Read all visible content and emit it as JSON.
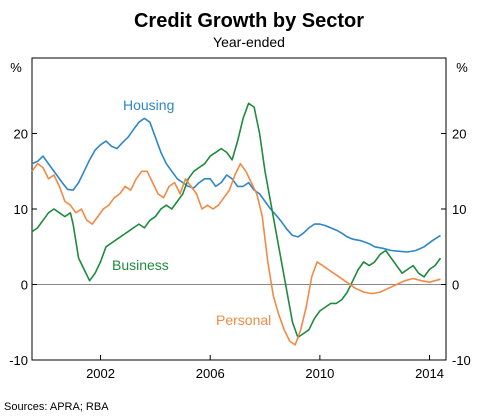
{
  "chart_data": {
    "type": "line",
    "title": "Credit Growth by Sector",
    "subtitle": "Year-ended",
    "y_unit_left": "%",
    "y_unit_right": "%",
    "ylim": [
      -10,
      30
    ],
    "yticks": [
      -10,
      0,
      10,
      20
    ],
    "ytick_labels": [
      "-10",
      "0",
      "10",
      "20"
    ],
    "xlim": [
      1999.5,
      2014.6
    ],
    "xticks": [
      2002,
      2006,
      2010,
      2014
    ],
    "xtick_labels": [
      "2002",
      "2006",
      "2010",
      "2014"
    ],
    "grid": false,
    "zero_line": true,
    "source": "Sources:   APRA; RBA",
    "colors": {
      "Housing": "#2e86c8",
      "Business": "#1e8b3e",
      "Personal": "#f08a45"
    },
    "series": [
      {
        "name": "Housing",
        "x": [
          1999.5,
          1999.7,
          1999.9,
          2000.0,
          2000.2,
          2000.4,
          2000.6,
          2000.8,
          2001.0,
          2001.2,
          2001.4,
          2001.6,
          2001.8,
          2002.0,
          2002.2,
          2002.4,
          2002.6,
          2002.8,
          2003.0,
          2003.2,
          2003.4,
          2003.6,
          2003.8,
          2004.0,
          2004.2,
          2004.4,
          2004.6,
          2004.8,
          2005.0,
          2005.2,
          2005.4,
          2005.6,
          2005.8,
          2006.0,
          2006.2,
          2006.4,
          2006.6,
          2006.8,
          2007.0,
          2007.2,
          2007.4,
          2007.6,
          2007.8,
          2008.0,
          2008.2,
          2008.4,
          2008.6,
          2008.8,
          2009.0,
          2009.2,
          2009.4,
          2009.6,
          2009.8,
          2010.0,
          2010.2,
          2010.4,
          2010.6,
          2010.8,
          2011.0,
          2011.2,
          2011.5,
          2011.8,
          2012.0,
          2012.3,
          2012.6,
          2012.9,
          2013.2,
          2013.5,
          2013.8,
          2014.1,
          2014.4
        ],
        "values": [
          16.0,
          16.3,
          17.0,
          16.5,
          15.5,
          14.5,
          13.5,
          12.6,
          12.5,
          13.5,
          15.0,
          16.5,
          17.8,
          18.5,
          19.0,
          18.3,
          18.0,
          18.8,
          19.5,
          20.5,
          21.5,
          22.0,
          21.5,
          19.5,
          17.5,
          16.0,
          15.0,
          14.0,
          13.5,
          13.0,
          12.8,
          13.5,
          14.0,
          14.0,
          13.0,
          13.5,
          14.5,
          14.0,
          13.0,
          13.0,
          13.5,
          12.5,
          12.0,
          11.0,
          10.0,
          9.2,
          8.3,
          7.3,
          6.5,
          6.3,
          6.8,
          7.5,
          8.0,
          8.0,
          7.8,
          7.5,
          7.2,
          6.8,
          6.3,
          6.0,
          5.8,
          5.4,
          5.0,
          4.8,
          4.5,
          4.4,
          4.3,
          4.5,
          5.0,
          5.8,
          6.5
        ]
      },
      {
        "name": "Business",
        "x": [
          1999.5,
          1999.7,
          1999.9,
          2000.1,
          2000.3,
          2000.5,
          2000.7,
          2000.9,
          2001.0,
          2001.2,
          2001.4,
          2001.6,
          2001.8,
          2002.0,
          2002.2,
          2002.4,
          2002.6,
          2002.8,
          2003.0,
          2003.2,
          2003.4,
          2003.6,
          2003.8,
          2004.0,
          2004.2,
          2004.4,
          2004.6,
          2004.8,
          2005.0,
          2005.2,
          2005.4,
          2005.6,
          2005.8,
          2006.0,
          2006.2,
          2006.4,
          2006.6,
          2006.8,
          2007.0,
          2007.2,
          2007.4,
          2007.6,
          2007.8,
          2008.0,
          2008.2,
          2008.4,
          2008.6,
          2008.8,
          2009.0,
          2009.2,
          2009.4,
          2009.6,
          2009.8,
          2010.0,
          2010.2,
          2010.4,
          2010.6,
          2010.8,
          2011.0,
          2011.2,
          2011.4,
          2011.6,
          2011.8,
          2012.0,
          2012.2,
          2012.4,
          2012.6,
          2012.8,
          2013.0,
          2013.2,
          2013.4,
          2013.6,
          2013.8,
          2014.0,
          2014.2,
          2014.4
        ],
        "values": [
          7.0,
          7.5,
          8.5,
          9.5,
          10.0,
          9.5,
          9.0,
          9.5,
          8.0,
          3.5,
          2.0,
          0.5,
          1.5,
          3.0,
          5.0,
          5.5,
          6.0,
          6.5,
          7.0,
          7.5,
          8.0,
          7.5,
          8.5,
          9.0,
          10.0,
          10.5,
          10.0,
          11.0,
          12.0,
          14.0,
          15.0,
          15.5,
          16.0,
          17.0,
          17.5,
          18.0,
          17.5,
          16.5,
          19.0,
          22.0,
          24.0,
          23.5,
          20.0,
          15.0,
          11.0,
          7.0,
          3.0,
          -1.0,
          -5.0,
          -7.0,
          -6.5,
          -6.0,
          -4.5,
          -3.5,
          -3.0,
          -2.5,
          -2.5,
          -2.0,
          -1.0,
          0.5,
          2.0,
          3.0,
          2.5,
          3.0,
          4.0,
          4.5,
          3.5,
          2.5,
          1.5,
          2.0,
          2.5,
          1.5,
          1.0,
          2.0,
          2.5,
          3.5
        ]
      },
      {
        "name": "Personal",
        "x": [
          1999.5,
          1999.7,
          1999.9,
          2000.1,
          2000.3,
          2000.5,
          2000.7,
          2000.9,
          2001.1,
          2001.3,
          2001.5,
          2001.7,
          2001.9,
          2002.1,
          2002.3,
          2002.5,
          2002.7,
          2002.9,
          2003.1,
          2003.3,
          2003.5,
          2003.7,
          2003.9,
          2004.1,
          2004.3,
          2004.5,
          2004.7,
          2004.9,
          2005.1,
          2005.3,
          2005.5,
          2005.7,
          2005.9,
          2006.1,
          2006.3,
          2006.5,
          2006.7,
          2006.9,
          2007.1,
          2007.3,
          2007.5,
          2007.7,
          2007.9,
          2008.1,
          2008.3,
          2008.5,
          2008.7,
          2008.9,
          2009.1,
          2009.3,
          2009.5,
          2009.7,
          2009.9,
          2010.1,
          2010.3,
          2010.5,
          2010.7,
          2010.9,
          2011.1,
          2011.3,
          2011.6,
          2011.9,
          2012.2,
          2012.5,
          2012.8,
          2013.1,
          2013.4,
          2013.7,
          2014.0,
          2014.2,
          2014.4
        ],
        "values": [
          15.0,
          16.0,
          15.5,
          14.0,
          14.5,
          13.0,
          11.0,
          10.5,
          9.5,
          10.0,
          8.5,
          8.0,
          9.0,
          10.0,
          10.5,
          11.5,
          12.0,
          13.0,
          12.5,
          14.0,
          15.0,
          15.0,
          13.5,
          12.0,
          11.5,
          13.0,
          13.5,
          12.0,
          14.0,
          13.0,
          12.0,
          10.0,
          10.5,
          10.0,
          10.5,
          11.5,
          12.5,
          14.5,
          16.0,
          15.0,
          13.5,
          12.0,
          9.0,
          3.0,
          -1.5,
          -4.0,
          -6.0,
          -7.5,
          -8.0,
          -6.0,
          -3.0,
          1.0,
          3.0,
          2.5,
          2.0,
          1.5,
          1.0,
          0.5,
          0.0,
          -0.5,
          -1.0,
          -1.2,
          -1.0,
          -0.5,
          0.0,
          0.5,
          0.8,
          0.5,
          0.3,
          0.5,
          0.7
        ]
      }
    ]
  }
}
